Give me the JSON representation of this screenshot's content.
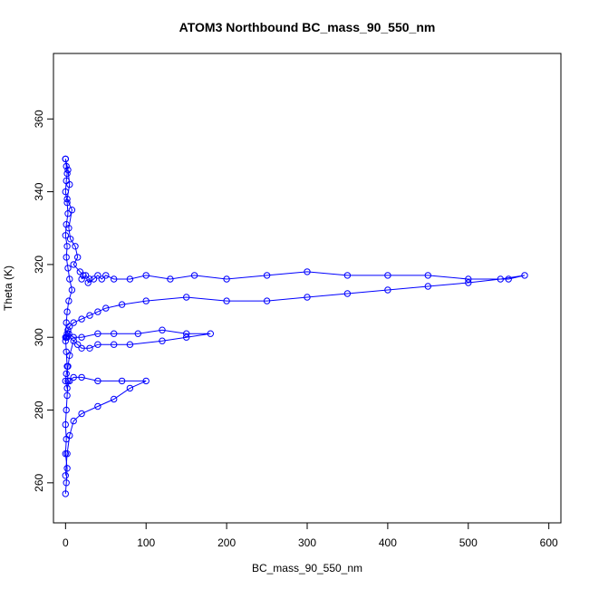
{
  "chart_data": {
    "type": "scatter",
    "title": "ATOM3 Northbound BC_mass_90_550_nm",
    "xlabel": "BC_mass_90_550_nm",
    "ylabel": "Theta (K)",
    "xlim": [
      -15,
      615
    ],
    "ylim": [
      249,
      378
    ],
    "xticks": [
      0,
      100,
      200,
      300,
      400,
      500,
      600
    ],
    "yticks": [
      260,
      280,
      300,
      320,
      340,
      360
    ],
    "grid": false,
    "legend": "none",
    "color": "#0000ff",
    "series": [
      {
        "style": "points-and-lines",
        "x": [
          0,
          3,
          5,
          2,
          8,
          4,
          6,
          12,
          15,
          10,
          18,
          22,
          20,
          25,
          30,
          28,
          35,
          40,
          45,
          50,
          60,
          80,
          100,
          130,
          160,
          200,
          250,
          300,
          350,
          400,
          450,
          500,
          550,
          570,
          540,
          500,
          450,
          400,
          350,
          300,
          250,
          200,
          150,
          100,
          70,
          50,
          40,
          30,
          20,
          10,
          5,
          3,
          2,
          1,
          0,
          2,
          4,
          10,
          20,
          40,
          60,
          90,
          120,
          150,
          180,
          150,
          120,
          80,
          60,
          40,
          30,
          20,
          15,
          10,
          5,
          3,
          1,
          0,
          2,
          5,
          10,
          20,
          40,
          70,
          100,
          80,
          60,
          40,
          20,
          10,
          5,
          2,
          0
        ],
        "y": [
          349,
          346,
          342,
          338,
          335,
          330,
          327,
          325,
          322,
          320,
          318,
          317,
          316,
          317,
          316,
          315,
          316,
          317,
          316,
          317,
          316,
          316,
          317,
          316,
          317,
          316,
          317,
          318,
          317,
          317,
          317,
          316,
          316,
          317,
          316,
          315,
          314,
          313,
          312,
          311,
          310,
          310,
          311,
          310,
          309,
          308,
          307,
          306,
          305,
          304,
          303,
          302,
          301,
          300,
          299,
          300,
          301,
          300,
          300,
          301,
          301,
          301,
          302,
          301,
          301,
          300,
          299,
          298,
          298,
          298,
          297,
          297,
          298,
          299,
          295,
          292,
          290,
          288,
          286,
          288,
          289,
          289,
          288,
          288,
          288,
          286,
          283,
          281,
          279,
          277,
          273,
          268,
          262
        ]
      },
      {
        "style": "points-and-lines",
        "x": [
          0,
          1,
          2,
          1,
          0,
          2,
          3,
          1,
          0,
          2,
          1,
          3,
          5,
          8,
          4,
          2,
          1,
          0,
          1,
          2,
          3,
          2,
          1,
          0,
          1,
          0,
          2,
          1,
          0
        ],
        "y": [
          349,
          347,
          345,
          343,
          340,
          337,
          334,
          331,
          328,
          325,
          322,
          319,
          316,
          313,
          310,
          307,
          304,
          300,
          296,
          292,
          288,
          284,
          280,
          276,
          272,
          268,
          264,
          260,
          257
        ]
      }
    ]
  }
}
